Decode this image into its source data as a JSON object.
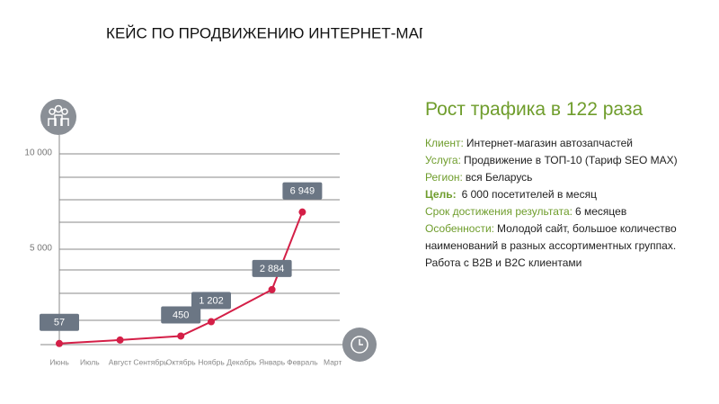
{
  "chart_data": {
    "type": "line",
    "title": "КЕЙС ПО ПРОДВИЖЕНИЮ ИНТЕРНЕТ-МАГАЗИНА АВТОЗАПЧАСТЕЙ",
    "categories": [
      "Июнь",
      "Июль",
      "Август",
      "Сентябрь",
      "Октябрь",
      "Ноябрь",
      "Декабрь",
      "Январь",
      "Февраль",
      "Март"
    ],
    "series": [
      {
        "color": "#d41f47",
        "values": [
          57,
          null,
          240,
          null,
          450,
          1202,
          null,
          2884,
          6949,
          null
        ],
        "value_labels": [
          "57",
          null,
          null,
          null,
          "450",
          "1 202",
          null,
          "2 884",
          "6 949",
          null
        ]
      }
    ],
    "ylim": [
      0,
      10000
    ],
    "yticks": [
      {
        "value": 5000,
        "label": "5 000"
      },
      {
        "value": 10000,
        "label": "10 000"
      }
    ],
    "grid": true
  },
  "panel": {
    "title": "Рост трафика в 122 раза",
    "rows": [
      {
        "label": "Клиент:",
        "text": "Интернет-магазин автозапчастей"
      },
      {
        "label": "Услуга:",
        "text": "Продвижение в ТОП-10 (Тариф SEO MAX)"
      },
      {
        "label": "Регион:",
        "text": "вся Беларусь"
      },
      {
        "label": "Цель:",
        "text": "6 000 посетителей в месяц"
      },
      {
        "label": "Срок достижения результата:",
        "text": "6 месяцев"
      },
      {
        "label": "Особенности:",
        "text": "Молодой сайт, большое количество наименований в разных ассортиментных группах. Работа с B2B и B2C клиентами"
      }
    ]
  }
}
